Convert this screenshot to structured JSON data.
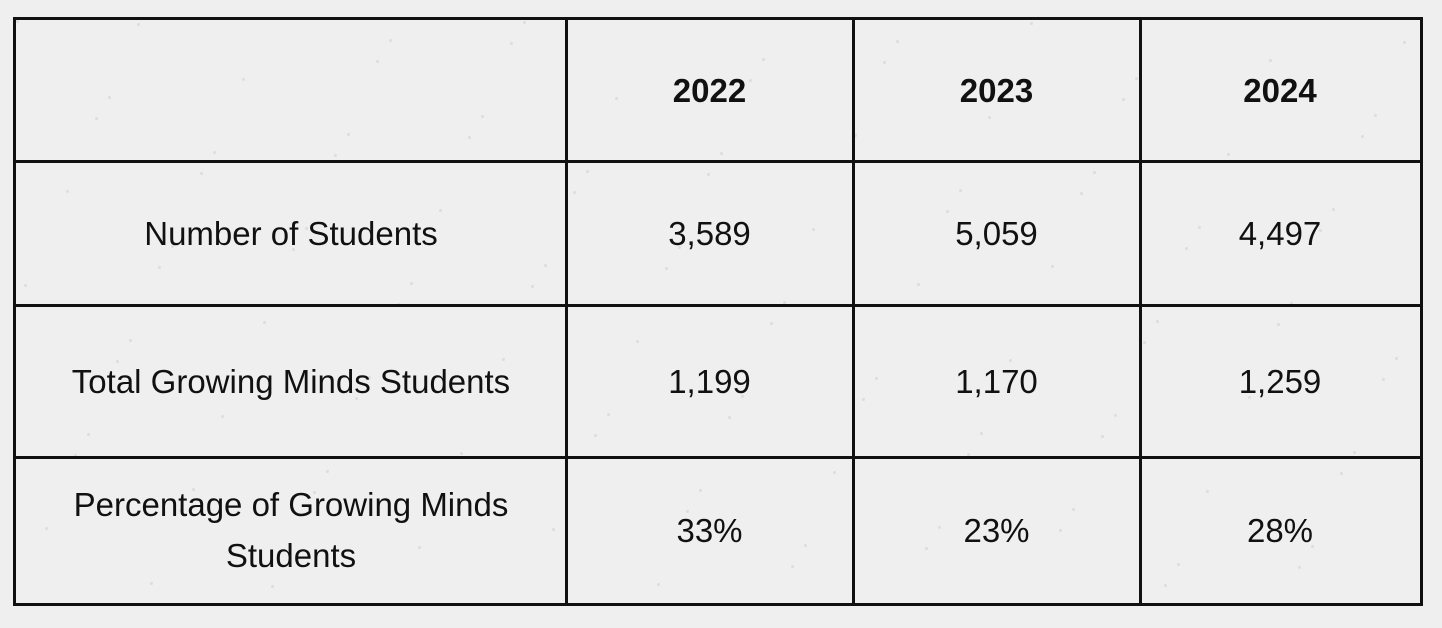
{
  "table": {
    "columns": [
      "2022",
      "2023",
      "2024"
    ],
    "rows": [
      {
        "label": "Number of Students",
        "cells": [
          "3,589",
          "5,059",
          "4,497"
        ]
      },
      {
        "label": "Total Growing Minds Students",
        "cells": [
          "1,199",
          "1,170",
          "1,259"
        ]
      },
      {
        "label": "Percentage of Growing Minds Students",
        "cells": [
          "33%",
          "23%",
          "28%"
        ]
      }
    ]
  }
}
